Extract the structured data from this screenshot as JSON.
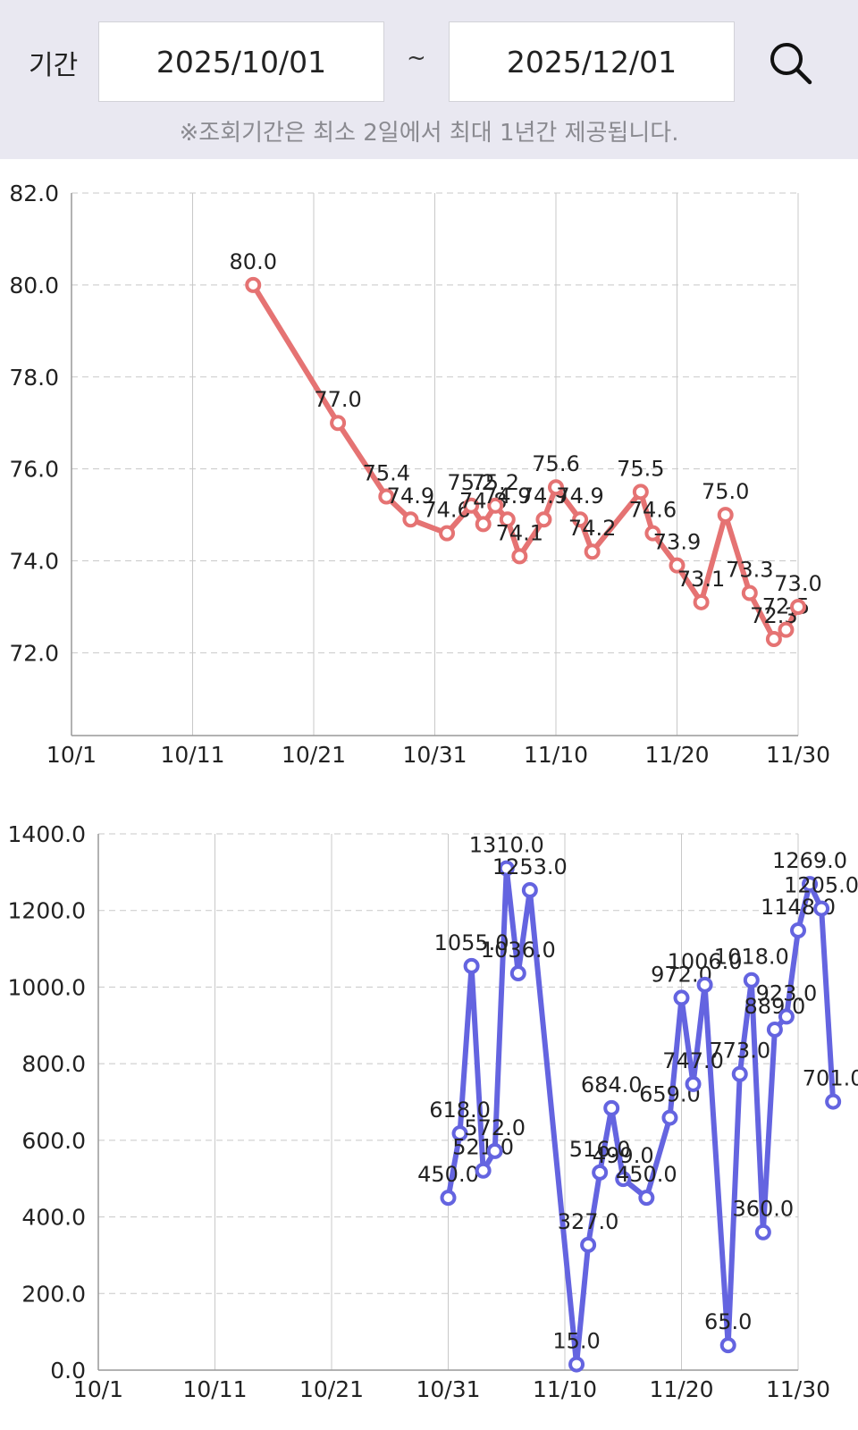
{
  "filter": {
    "period_label": "기간",
    "start_date": "2025/10/01",
    "separator": "~",
    "end_date": "2025/12/01",
    "search_icon": "search-icon",
    "notice": "※조회기간은 최소 2일에서 최대 1년간 제공됩니다."
  },
  "chart_data": [
    {
      "type": "line",
      "color": "#e57373",
      "x_ticks": [
        "10/1",
        "10/11",
        "10/21",
        "10/31",
        "11/10",
        "11/20",
        "11/30"
      ],
      "y_ticks": [
        "72.0",
        "74.0",
        "76.0",
        "78.0",
        "80.0",
        "82.0"
      ],
      "ylim": [
        70.2,
        82.0
      ],
      "xlim": [
        "2025-10-01",
        "2025-11-30"
      ],
      "grid": true,
      "series": [
        {
          "points": [
            {
              "date": "2025-10-16",
              "value": 80.0
            },
            {
              "date": "2025-10-23",
              "value": 77.0
            },
            {
              "date": "2025-10-27",
              "value": 75.4
            },
            {
              "date": "2025-10-29",
              "value": 74.9
            },
            {
              "date": "2025-11-01",
              "value": 74.6
            },
            {
              "date": "2025-11-03",
              "value": 75.2
            },
            {
              "date": "2025-11-04",
              "value": 74.8
            },
            {
              "date": "2025-11-05",
              "value": 75.2
            },
            {
              "date": "2025-11-06",
              "value": 74.9
            },
            {
              "date": "2025-11-07",
              "value": 74.1
            },
            {
              "date": "2025-11-09",
              "value": 74.9
            },
            {
              "date": "2025-11-10",
              "value": 75.6
            },
            {
              "date": "2025-11-12",
              "value": 74.9
            },
            {
              "date": "2025-11-13",
              "value": 74.2
            },
            {
              "date": "2025-11-17",
              "value": 75.5
            },
            {
              "date": "2025-11-18",
              "value": 74.6
            },
            {
              "date": "2025-11-20",
              "value": 73.9
            },
            {
              "date": "2025-11-22",
              "value": 73.1
            },
            {
              "date": "2025-11-24",
              "value": 75.0
            },
            {
              "date": "2025-11-26",
              "value": 73.3
            },
            {
              "date": "2025-11-28",
              "value": 72.3
            },
            {
              "date": "2025-11-29",
              "value": 72.5
            },
            {
              "date": "2025-11-30",
              "value": 73.0
            }
          ]
        }
      ]
    },
    {
      "type": "line",
      "color": "#6464e0",
      "x_ticks": [
        "10/1",
        "10/11",
        "10/21",
        "10/31",
        "11/10",
        "11/20",
        "11/30"
      ],
      "y_ticks": [
        "0.0",
        "200.0",
        "400.0",
        "600.0",
        "800.0",
        "1000.0",
        "1200.0",
        "1400.0"
      ],
      "ylim": [
        0,
        1400
      ],
      "xlim": [
        "2025-10-01",
        "2025-11-30"
      ],
      "grid": true,
      "series": [
        {
          "points": [
            {
              "date": "2025-10-31",
              "value": 450.0
            },
            {
              "date": "2025-11-01",
              "value": 618.0
            },
            {
              "date": "2025-11-02",
              "value": 1055.0
            },
            {
              "date": "2025-11-03",
              "value": 521.0
            },
            {
              "date": "2025-11-04",
              "value": 572.0
            },
            {
              "date": "2025-11-05",
              "value": 1310.0
            },
            {
              "date": "2025-11-06",
              "value": 1036.0
            },
            {
              "date": "2025-11-07",
              "value": 1253.0
            },
            {
              "date": "2025-11-11",
              "value": 15.0
            },
            {
              "date": "2025-11-12",
              "value": 327.0
            },
            {
              "date": "2025-11-13",
              "value": 516.0
            },
            {
              "date": "2025-11-14",
              "value": 684.0
            },
            {
              "date": "2025-11-15",
              "value": 499.0
            },
            {
              "date": "2025-11-17",
              "value": 450.0
            },
            {
              "date": "2025-11-19",
              "value": 659.0
            },
            {
              "date": "2025-11-20",
              "value": 972.0
            },
            {
              "date": "2025-11-21",
              "value": 747.0
            },
            {
              "date": "2025-11-22",
              "value": 1006.0
            },
            {
              "date": "2025-11-24",
              "value": 65.0
            },
            {
              "date": "2025-11-25",
              "value": 773.0
            },
            {
              "date": "2025-11-26",
              "value": 1018.0
            },
            {
              "date": "2025-11-27",
              "value": 360.0
            },
            {
              "date": "2025-11-28",
              "value": 889.0
            },
            {
              "date": "2025-11-29",
              "value": 923.0
            },
            {
              "date": "2025-11-30",
              "value": 1148.0
            },
            {
              "date": "2025-12-01",
              "value": 1269.0
            },
            {
              "date": "2025-12-02",
              "value": 1205.0
            },
            {
              "date": "2025-12-03",
              "value": 701.0
            }
          ]
        }
      ]
    }
  ]
}
